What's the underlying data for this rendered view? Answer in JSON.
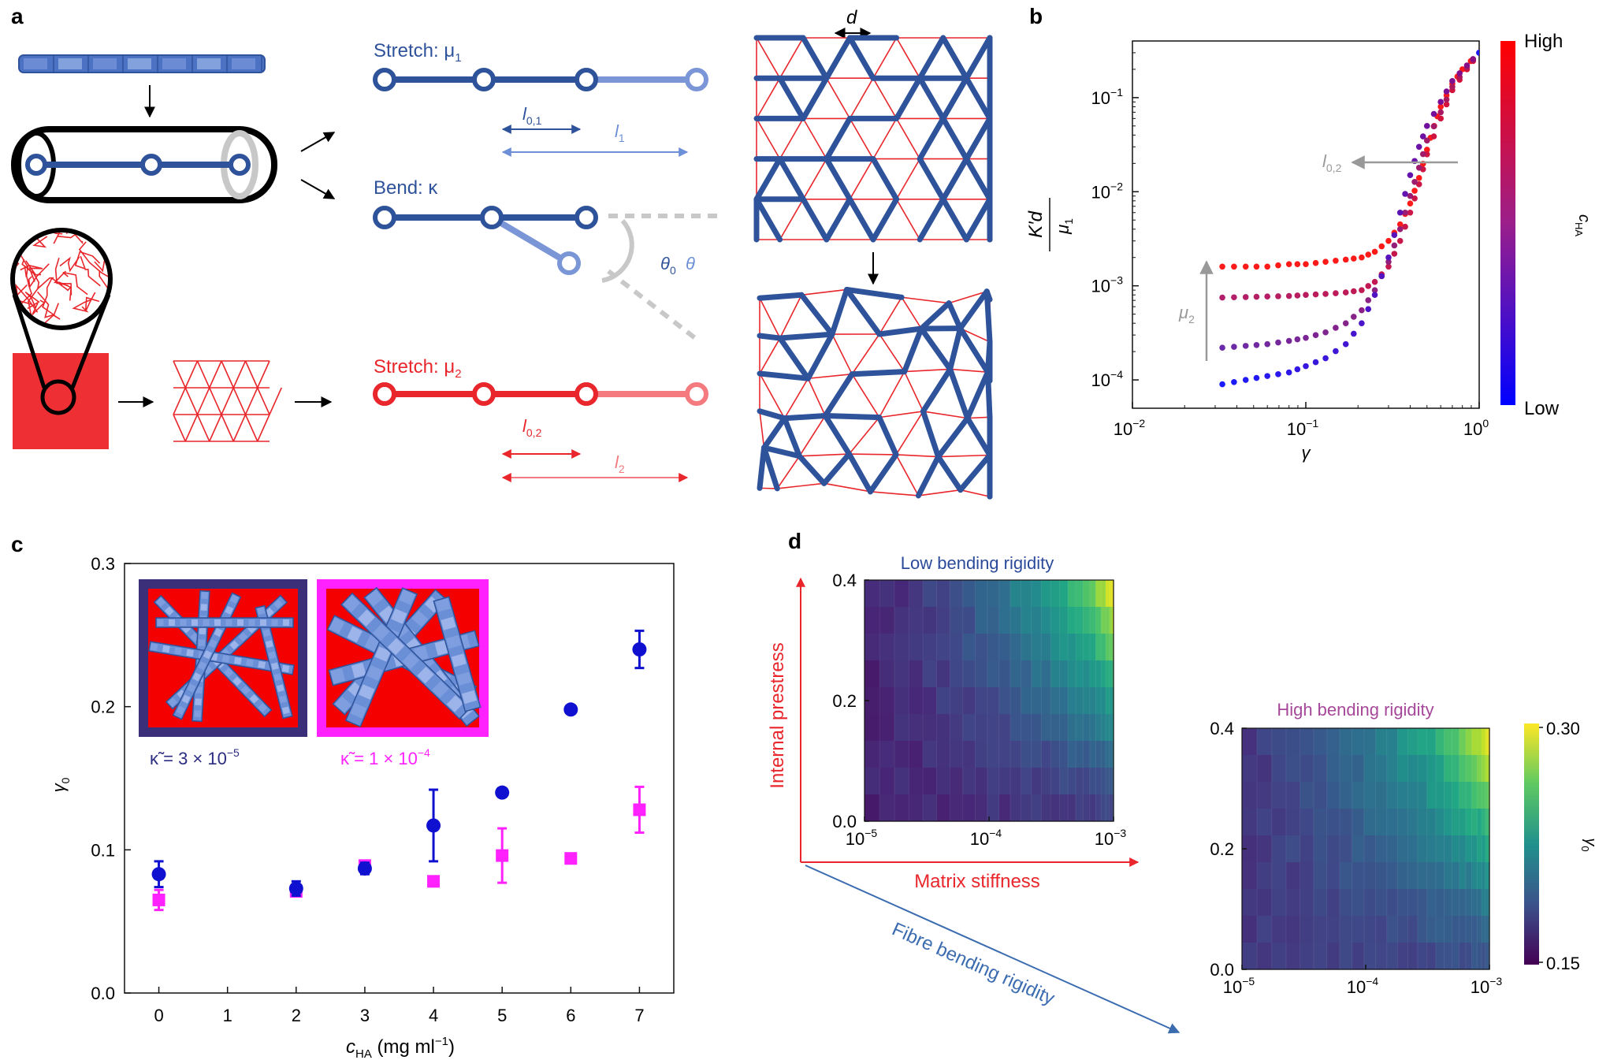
{
  "panels": {
    "a": {
      "label": "a",
      "stretch1": "Stretch: μ",
      "stretch1_sub": "1",
      "bend": "Bend: κ",
      "stretch2": "Stretch: μ",
      "stretch2_sub": "2",
      "l01": "l",
      "l01_sub": "0,1",
      "l1": "l",
      "l1_sub": "1",
      "l02": "l",
      "l02_sub": "0,2",
      "l2": "l",
      "l2_sub": "2",
      "theta0": "θ",
      "theta0_sub": "0",
      "theta": "θ",
      "d": "d",
      "colors": {
        "fibre": "#2f539b",
        "fibre_light": "#7b96d6",
        "matrix": "#e8262b",
        "matrix_light": "#f47a7f"
      }
    },
    "b": {
      "label": "b",
      "colorbar_high": "High",
      "colorbar_low": "Low",
      "colorbar_label": "c",
      "colorbar_label_sub": "HA",
      "ylabel_num": "K′d",
      "ylabel_den": "μ",
      "ylabel_den_sub": "1",
      "xlabel": "γ",
      "annot_l02": "l",
      "annot_l02_sub": "0,2",
      "annot_mu2": "μ",
      "annot_mu2_sub": "2",
      "xticks": [
        "10",
        "10",
        "10"
      ],
      "xtick_exps": [
        "−2",
        "−1",
        "0"
      ],
      "yticks": [
        "10",
        "10",
        "10",
        "10"
      ],
      "ytick_exps": [
        "−1",
        "−2",
        "−3",
        "−4"
      ]
    },
    "c": {
      "label": "c",
      "ylabel": "γ",
      "ylabel_sub": "0",
      "xlabel": "c",
      "xlabel_sub": "HA",
      "xlabel_unit": " (mg ml",
      "xlabel_unit_exp": "−1",
      "xlabel_unit_end": ")",
      "inset1_kappa": "κ̃ = 3 × 10",
      "inset1_exp": "−5",
      "inset2_kappa": "κ̃ = 1 × 10",
      "inset2_exp": "−4",
      "xticks": [
        "0",
        "1",
        "2",
        "3",
        "4",
        "5",
        "6",
        "7"
      ],
      "yticks": [
        "0.0",
        "0.1",
        "0.2",
        "0.3"
      ]
    },
    "d": {
      "label": "d",
      "low_title": "Low bending rigidity",
      "high_title": "High bending rigidity",
      "axis_prestress": "Internal prestress",
      "axis_matrix": "Matrix stiffness",
      "axis_fibre": "Fibre bending rigidity",
      "colorbar_max": "0.30",
      "colorbar_min": "0.15",
      "colorbar_label": "γ",
      "colorbar_label_sub": "0",
      "yticks": [
        "0.4",
        "0.2",
        "0.0"
      ],
      "xticks": [
        "10",
        "10",
        "10"
      ],
      "xtick_exps": [
        "−5",
        "−4",
        "−3"
      ]
    }
  },
  "chart_data": [
    {
      "type": "scatter",
      "panel": "b",
      "xscale": "log",
      "yscale": "log",
      "xlim": [
        0.01,
        1.0
      ],
      "ylim": [
        5e-05,
        0.4
      ],
      "series": [
        {
          "color": "#ff1a1a",
          "x": [
            0.033,
            0.045,
            0.06,
            0.08,
            0.1,
            0.13,
            0.17,
            0.21,
            0.25,
            0.3,
            0.35,
            0.4,
            0.45,
            0.5,
            0.55,
            0.6,
            0.7,
            0.8,
            1.0
          ],
          "y": [
            0.0016,
            0.0016,
            0.0016,
            0.0017,
            0.0017,
            0.0018,
            0.0019,
            0.002,
            0.0023,
            0.003,
            0.0045,
            0.0075,
            0.014,
            0.028,
            0.05,
            0.08,
            0.14,
            0.2,
            0.3
          ]
        },
        {
          "color": "#b0206a",
          "x": [
            0.033,
            0.045,
            0.06,
            0.08,
            0.1,
            0.13,
            0.17,
            0.21,
            0.25,
            0.3,
            0.35,
            0.4,
            0.45,
            0.5,
            0.6,
            0.7,
            0.85,
            1.0
          ],
          "y": [
            0.00075,
            0.00076,
            0.00077,
            0.00078,
            0.0008,
            0.00082,
            0.00085,
            0.0009,
            0.0011,
            0.0016,
            0.003,
            0.006,
            0.012,
            0.025,
            0.06,
            0.12,
            0.2,
            0.3
          ]
        },
        {
          "color": "#6a2aa8",
          "x": [
            0.033,
            0.045,
            0.06,
            0.08,
            0.1,
            0.13,
            0.17,
            0.21,
            0.25,
            0.3,
            0.35,
            0.4,
            0.45,
            0.5,
            0.6,
            0.7,
            0.85,
            1.0
          ],
          "y": [
            0.00022,
            0.00023,
            0.00024,
            0.00026,
            0.00028,
            0.00032,
            0.0004,
            0.00055,
            0.0009,
            0.0018,
            0.004,
            0.009,
            0.018,
            0.035,
            0.07,
            0.13,
            0.21,
            0.3
          ]
        },
        {
          "color": "#1a1aff",
          "x": [
            0.033,
            0.045,
            0.06,
            0.08,
            0.1,
            0.13,
            0.17,
            0.21,
            0.25,
            0.3,
            0.35,
            0.4,
            0.45,
            0.5,
            0.6,
            0.7,
            0.85,
            1.0
          ],
          "y": [
            9e-05,
            0.0001,
            0.00011,
            0.00012,
            0.00014,
            0.00017,
            0.00024,
            0.0004,
            0.0008,
            0.002,
            0.006,
            0.015,
            0.03,
            0.05,
            0.09,
            0.15,
            0.22,
            0.3
          ]
        }
      ]
    },
    {
      "type": "scatter",
      "panel": "c",
      "xlim": [
        -0.5,
        7.5
      ],
      "ylim": [
        0,
        0.3
      ],
      "series": [
        {
          "color": "#1010d0",
          "marker": "circle",
          "x": [
            0,
            2,
            3,
            4,
            5,
            6,
            7
          ],
          "y": [
            0.083,
            0.073,
            0.087,
            0.117,
            0.14,
            0.198,
            0.24
          ],
          "err": [
            0.009,
            0.005,
            0.004,
            0.025,
            0.003,
            0.002,
            0.013
          ]
        },
        {
          "color": "#ff22ff",
          "marker": "square",
          "x": [
            0,
            2,
            3,
            4,
            5,
            6,
            7
          ],
          "y": [
            0.065,
            0.071,
            0.089,
            0.078,
            0.096,
            0.094,
            0.128
          ],
          "err": [
            0.007,
            0.002,
            0.002,
            0.001,
            0.019,
            0.002,
            0.016
          ]
        }
      ]
    },
    {
      "type": "heatmap",
      "panel": "d",
      "xscale": "log",
      "xlim": [
        1e-05,
        0.001
      ],
      "ylim": [
        0.0,
        0.4
      ],
      "zlim": [
        0.15,
        0.3
      ],
      "maps": [
        {
          "name": "Low bending rigidity",
          "zmin_corner": 0.165,
          "zmax_corner": 0.3
        },
        {
          "name": "High bending rigidity",
          "zmin_corner": 0.175,
          "zmax_corner": 0.3
        }
      ]
    }
  ]
}
